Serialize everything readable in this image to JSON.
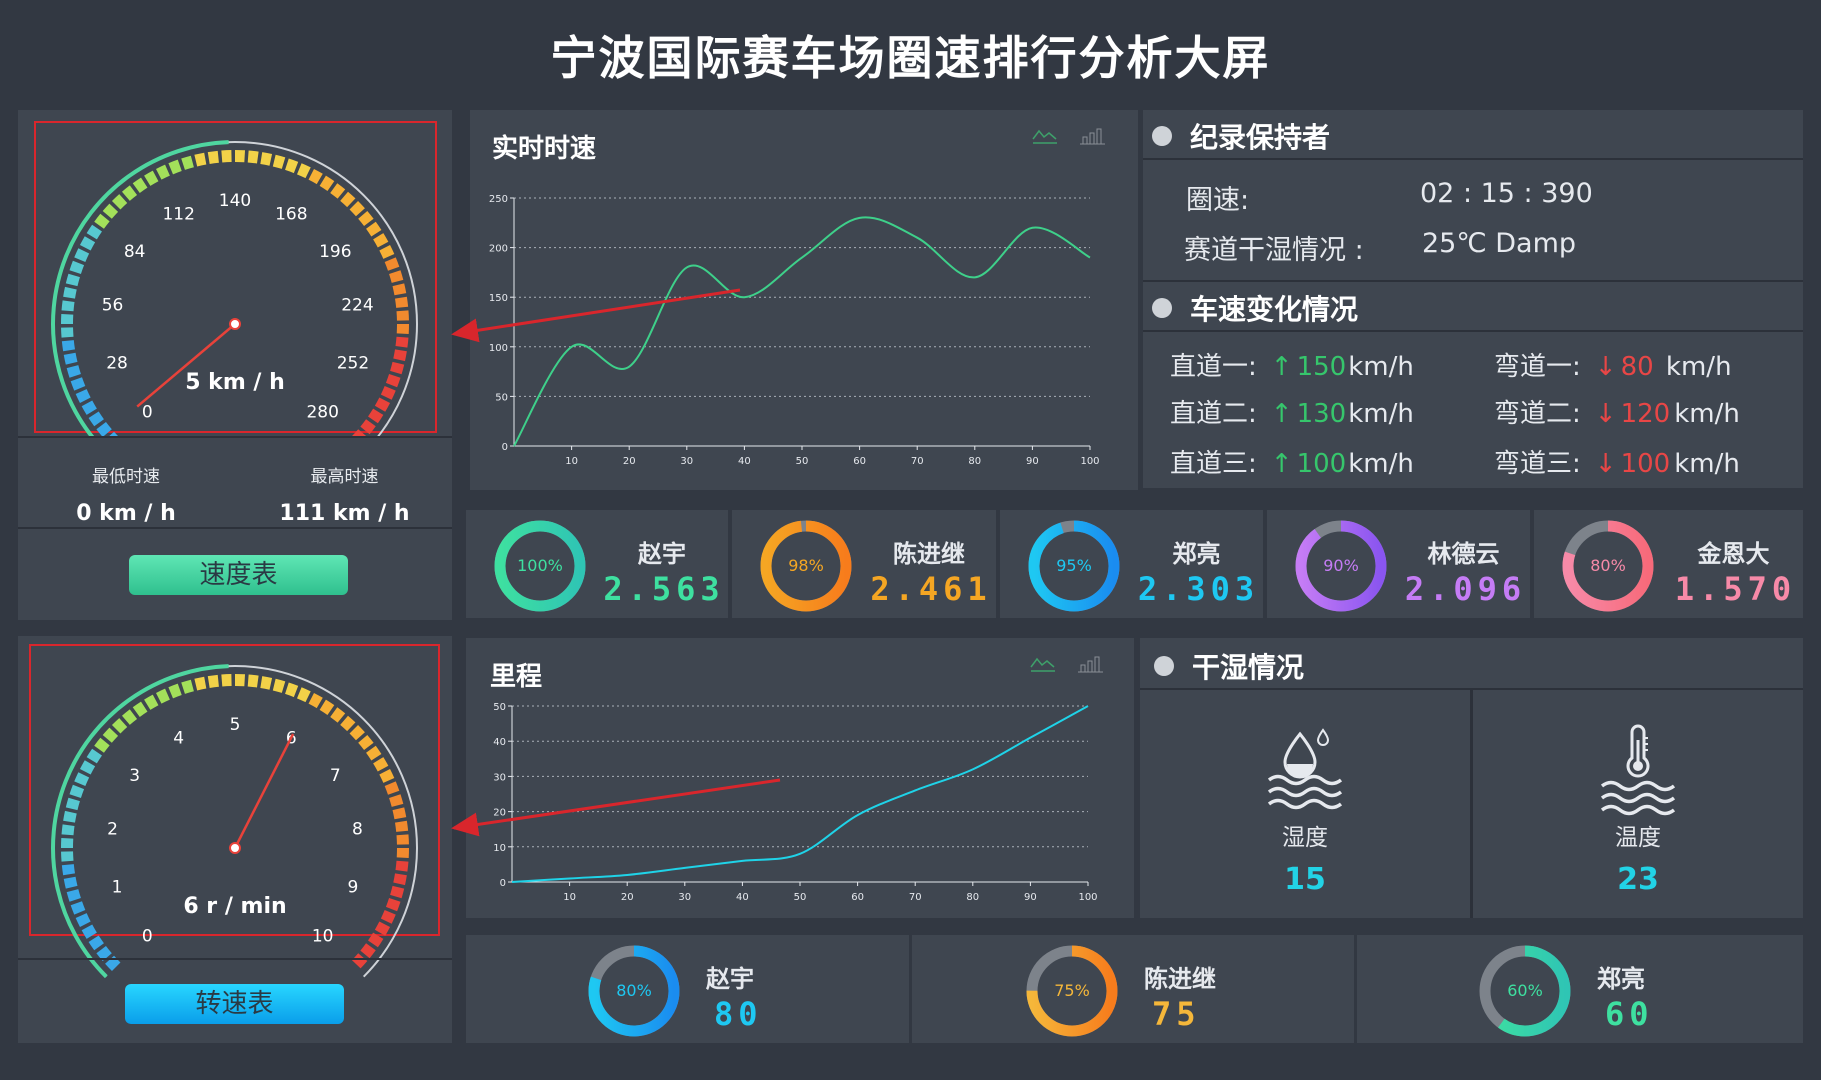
{
  "page": {
    "title": "宁波国际赛车场圈速排行分析大屏"
  },
  "speed_gauge": {
    "ticks": [
      "0",
      "28",
      "56",
      "84",
      "112",
      "140",
      "168",
      "196",
      "224",
      "252",
      "280"
    ],
    "reading": "5 km / h",
    "value": 5,
    "max": 280,
    "min_label": "最低时速",
    "min_value": "0 km / h",
    "max_label": "最高时速",
    "max_value": "111 km / h",
    "button": "速度表"
  },
  "rpm_gauge": {
    "ticks": [
      "0",
      "1",
      "2",
      "3",
      "4",
      "5",
      "6",
      "7",
      "8",
      "9",
      "10"
    ],
    "reading": "6 r / min",
    "value": 6,
    "max": 10,
    "button": "转速表"
  },
  "speed_chart": {
    "title": "实时时速"
  },
  "mileage_chart": {
    "title": "里程"
  },
  "record": {
    "title": "纪录保持者",
    "lap_label": "圈速:",
    "lap_value": "02 : 15 : 390",
    "track_label": "赛道干湿情况 :",
    "track_value": "25℃ Damp"
  },
  "speed_change": {
    "title": "车速变化情况",
    "rows": [
      {
        "left_label": "直道一:",
        "left_arrow": "↑",
        "left_value": "150",
        "left_unit": "km/h",
        "right_label": "弯道一:",
        "right_arrow": "↓",
        "right_value": "80",
        "right_unit": " km/h"
      },
      {
        "left_label": "直道二:",
        "left_arrow": "↑",
        "left_value": "130",
        "left_unit": "km/h",
        "right_label": "弯道二:",
        "right_arrow": "↓",
        "right_value": "120",
        "right_unit": "km/h"
      },
      {
        "left_label": "直道三:",
        "left_arrow": "↑",
        "left_value": "100",
        "left_unit": "km/h",
        "right_label": "弯道三:",
        "right_arrow": "↓",
        "right_value": "100",
        "right_unit": "km/h"
      }
    ]
  },
  "ranking": [
    {
      "name": "赵宇",
      "percent_text": "100%",
      "percent": 1.0,
      "score": "2.563",
      "color": "#3ee0a0",
      "color2": "#2fc5b4"
    },
    {
      "name": "陈进继",
      "percent_text": "98%",
      "percent": 0.98,
      "score": "2.461",
      "color": "#f5a623",
      "color2": "#f77c1c"
    },
    {
      "name": "郑亮",
      "percent_text": "95%",
      "percent": 0.95,
      "score": "2.303",
      "color": "#1ec8f2",
      "color2": "#1a8cf0"
    },
    {
      "name": "林德云",
      "percent_text": "90%",
      "percent": 0.9,
      "score": "2.096",
      "color": "#c57cf5",
      "color2": "#8a55f0"
    },
    {
      "name": "金恩大",
      "percent_text": "80%",
      "percent": 0.8,
      "score": "1.570",
      "color": "#f78aa8",
      "color2": "#f76a7a"
    }
  ],
  "dry_wet": {
    "title": "干湿情况",
    "humidity_label": "湿度",
    "humidity_value": "15",
    "temperature_label": "温度",
    "temperature_value": "23"
  },
  "mileage_ranking": [
    {
      "name": "赵宇",
      "percent_text": "80%",
      "percent": 0.8,
      "score": "80",
      "color": "#1ec8f2",
      "color2": "#1a8cf0"
    },
    {
      "name": "陈进继",
      "percent_text": "75%",
      "percent": 0.75,
      "score": "75",
      "color": "#f5b73a",
      "color2": "#f77c1c"
    },
    {
      "name": "郑亮",
      "percent_text": "60%",
      "percent": 0.6,
      "score": "60",
      "color": "#3ee0a0",
      "color2": "#2fc5b4"
    }
  ],
  "chart_data": [
    {
      "type": "line",
      "title": "实时时速",
      "x": [
        0,
        10,
        20,
        30,
        40,
        50,
        60,
        70,
        80,
        90,
        100
      ],
      "series": [
        {
          "values": [
            0,
            100,
            80,
            180,
            150,
            190,
            230,
            210,
            170,
            220,
            190
          ]
        }
      ],
      "xlim": [
        0,
        100
      ],
      "ylim": [
        0,
        250
      ],
      "yticks": [
        0,
        50,
        100,
        150,
        200,
        250
      ],
      "xticks": [
        10,
        20,
        30,
        40,
        50,
        60,
        70,
        80,
        90,
        100
      ],
      "grid": true,
      "color": "#3ed08a"
    },
    {
      "type": "line",
      "title": "里程",
      "x": [
        0,
        10,
        20,
        30,
        40,
        50,
        60,
        70,
        80,
        90,
        100
      ],
      "series": [
        {
          "values": [
            0,
            1,
            2,
            4,
            6,
            8,
            19,
            26,
            32,
            41,
            50
          ]
        }
      ],
      "xlim": [
        0,
        100
      ],
      "ylim": [
        0,
        50
      ],
      "yticks": [
        0,
        10,
        20,
        30,
        40,
        50
      ],
      "xticks": [
        10,
        20,
        30,
        40,
        50,
        60,
        70,
        80,
        90,
        100
      ],
      "grid": true,
      "color": "#1fd3e8"
    }
  ]
}
